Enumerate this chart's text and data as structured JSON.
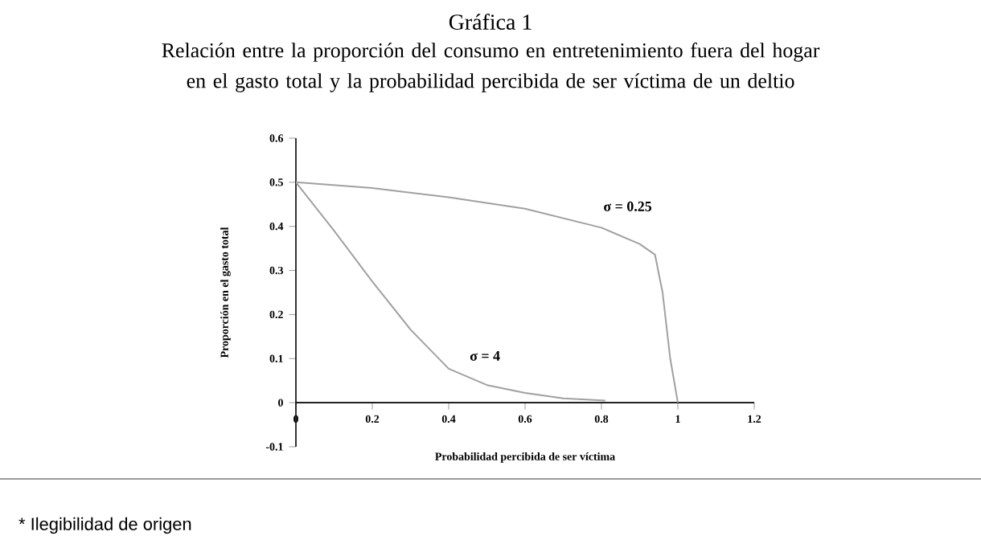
{
  "chart_data": {
    "type": "line",
    "title": "Gráfica 1",
    "subtitle": "Relación entre la proporción del consumo en entretenimiento fuera del hogar en el gasto total y la probabilidad percibida de ser víctima de un deltio",
    "xlabel": "Probabilidad percibida de ser víctima",
    "ylabel": "Proporción en el gasto total",
    "series": [
      {
        "color": "#a0a0a0",
        "x": [
          0,
          0.2,
          0.4,
          0.6,
          0.8,
          0.9,
          0.94,
          0.96,
          0.98,
          1
        ],
        "values": [
          0.5,
          0.487,
          0.466,
          0.44,
          0.397,
          0.36,
          0.336,
          0.25,
          0.1,
          0
        ]
      },
      {
        "color": "#a0a0a0",
        "x": [
          0,
          0.1,
          0.2,
          0.3,
          0.4,
          0.5,
          0.6,
          0.7,
          0.81
        ],
        "values": [
          0.5,
          0.39,
          0.275,
          0.166,
          0.077,
          0.04,
          0.022,
          0.01,
          0.005
        ]
      }
    ],
    "xlim": [
      0,
      1.2
    ],
    "xticks": [
      0,
      0.2,
      0.4,
      0.6,
      0.8,
      1,
      1.2
    ],
    "ylim": [
      -0.1,
      0.6
    ],
    "yticks": [
      -0.1,
      0,
      0.1,
      0.2,
      0.3,
      0.4,
      0.5,
      0.6
    ],
    "marker": "none",
    "line_style": "solid",
    "grid": false,
    "annotations": [
      {
        "text": "σ = 0.25",
        "x": 0.8,
        "y": 0.397
      },
      {
        "text": "σ = 4",
        "x": 0.45,
        "y": 0.058
      },
      "* Ilegibilidad de origen"
    ]
  }
}
